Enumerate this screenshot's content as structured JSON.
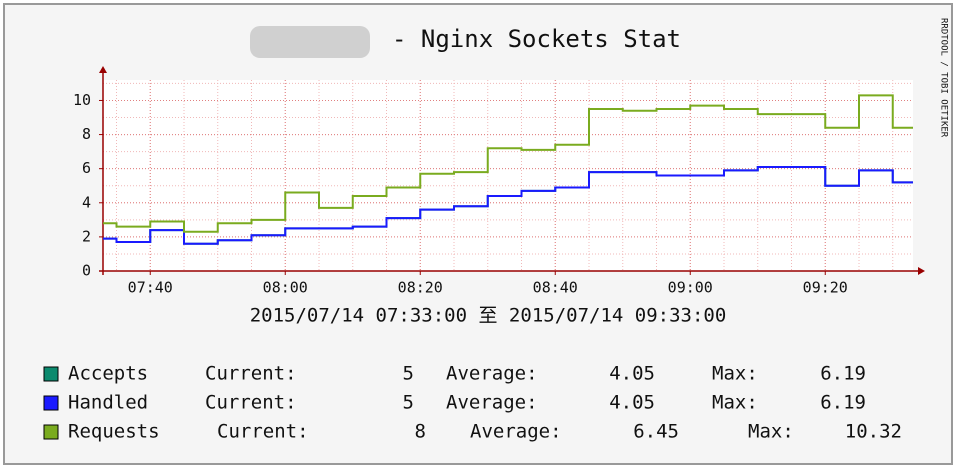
{
  "chart_data": {
    "type": "step",
    "title": "- Nginx Sockets Stat",
    "side_label": "RRDTOOL / TOBI OETIKER",
    "x_label": "2015/07/14 07:33:00 至 2015/07/14 09:33:00",
    "x": [
      "07:33",
      "07:35",
      "07:40",
      "07:45",
      "07:50",
      "07:55",
      "08:00",
      "08:05",
      "08:10",
      "08:15",
      "08:20",
      "08:25",
      "08:30",
      "08:35",
      "08:40",
      "08:45",
      "08:50",
      "08:55",
      "09:00",
      "09:05",
      "09:10",
      "09:15",
      "09:20",
      "09:25",
      "09:30"
    ],
    "xlim": [
      "07:33",
      "09:33"
    ],
    "xticks": [
      "07:40",
      "08:00",
      "08:20",
      "08:40",
      "09:00",
      "09:20"
    ],
    "ylim": [
      0,
      11.2
    ],
    "yticks": [
      0,
      2,
      4,
      6,
      8,
      10
    ],
    "grid": true,
    "legend_labels": {
      "current": "Current:",
      "average": "Average:",
      "max": "Max:"
    },
    "series": [
      {
        "name": "Accepts",
        "color": "#0b8a6e",
        "current": 5,
        "average": 4.05,
        "max": 6.19,
        "values": [
          1.9,
          1.7,
          2.4,
          1.6,
          1.8,
          2.1,
          2.5,
          2.5,
          2.6,
          3.1,
          3.6,
          3.8,
          4.4,
          4.7,
          4.9,
          5.8,
          5.8,
          5.6,
          5.6,
          5.9,
          6.1,
          6.1,
          5.0,
          5.9,
          5.2
        ]
      },
      {
        "name": "Handled",
        "color": "#1a1aff",
        "current": 5,
        "average": 4.05,
        "max": 6.19,
        "values": [
          1.9,
          1.7,
          2.4,
          1.6,
          1.8,
          2.1,
          2.5,
          2.5,
          2.6,
          3.1,
          3.6,
          3.8,
          4.4,
          4.7,
          4.9,
          5.8,
          5.8,
          5.6,
          5.6,
          5.9,
          6.1,
          6.1,
          5.0,
          5.9,
          5.2
        ]
      },
      {
        "name": "Requests",
        "color": "#7aab1f",
        "current": 8,
        "average": 6.45,
        "max": 10.32,
        "values": [
          2.8,
          2.6,
          2.9,
          2.3,
          2.8,
          3.0,
          4.6,
          3.7,
          4.4,
          4.9,
          5.7,
          5.8,
          7.2,
          7.1,
          7.4,
          9.5,
          9.4,
          9.5,
          9.7,
          9.5,
          9.2,
          9.2,
          8.4,
          10.3,
          8.4
        ]
      }
    ]
  }
}
